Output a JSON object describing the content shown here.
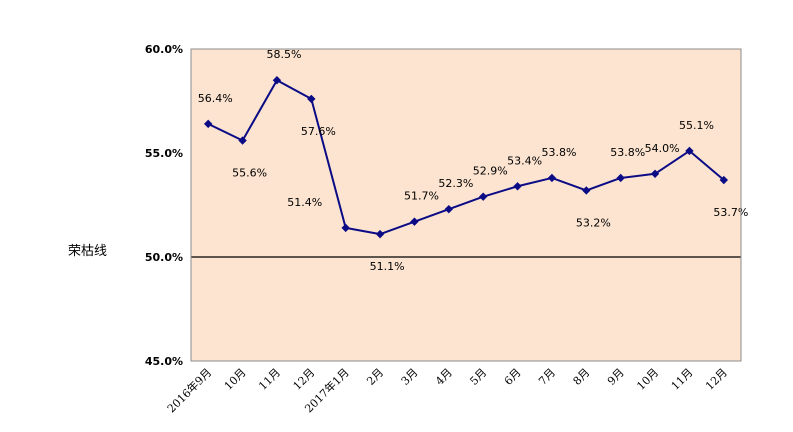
{
  "chart_data": {
    "type": "line",
    "categories": [
      "2016年9月",
      "10月",
      "11月",
      "12月",
      "2017年1月",
      "2月",
      "3月",
      "4月",
      "5月",
      "6月",
      "7月",
      "8月",
      "9月",
      "10月",
      "11月",
      "12月"
    ],
    "series": [
      {
        "values": [
          56.4,
          55.6,
          58.5,
          57.6,
          51.4,
          51.1,
          51.7,
          52.3,
          52.9,
          53.4,
          53.8,
          53.2,
          53.8,
          54.0,
          55.1,
          53.7
        ],
        "labels": [
          "56.4%",
          "55.6%",
          "58.5%",
          "57.6%",
          "51.4%",
          "51.1%",
          "51.7%",
          "52.3%",
          "52.9%",
          "53.4%",
          "53.8%",
          "53.2%",
          "53.8%",
          "54.0%",
          "55.1%",
          "53.7%"
        ]
      }
    ],
    "ylim": [
      45,
      60
    ],
    "yticks": [
      45,
      50,
      55,
      60
    ],
    "ytick_labels": [
      "45.0%",
      "50.0%",
      "55.0%",
      "60.0%"
    ],
    "reference_line": {
      "value": 50,
      "label": "荣枯线"
    },
    "colors": {
      "line": "#0b0b86",
      "plot_background": "#fce4d0",
      "reference_line": "#000000"
    },
    "grid": false,
    "legend": "none"
  }
}
